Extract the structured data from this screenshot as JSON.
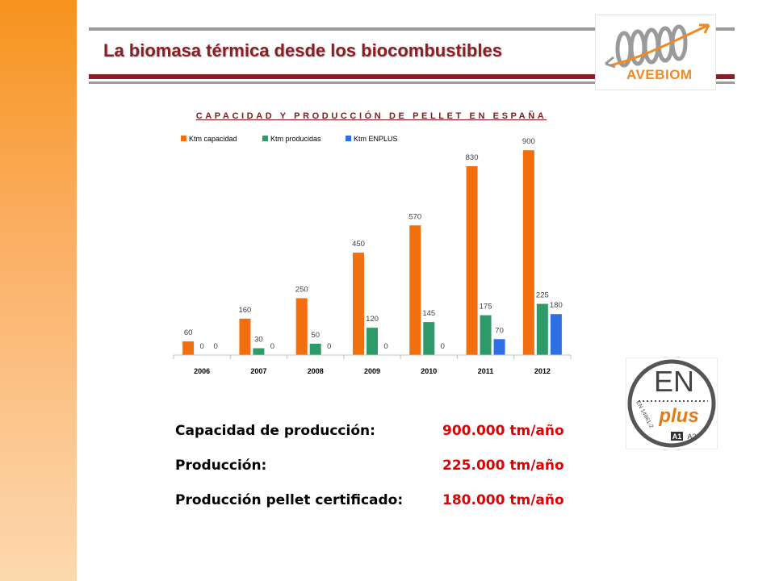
{
  "header": {
    "title": "La biomasa térmica desde los biocombustibles"
  },
  "logo": {
    "text": "AVEBIOM",
    "icon": "avebiom-logo-icon"
  },
  "chart_data": {
    "type": "bar",
    "title": "CAPACIDAD Y PRODUCCIÓN DE PELLET EN ESPAÑA",
    "categories": [
      "2006",
      "2007",
      "2008",
      "2009",
      "2010",
      "2011",
      "2012"
    ],
    "series": [
      {
        "name": "Ktm capacidad",
        "color": "#f26f10",
        "values": [
          60,
          160,
          250,
          450,
          570,
          830,
          900
        ]
      },
      {
        "name": "Ktm producidas",
        "color": "#2e9a6a",
        "values": [
          0,
          30,
          50,
          120,
          145,
          175,
          225
        ]
      },
      {
        "name": "Ktm ENPLUS",
        "color": "#2f6fe4",
        "values": [
          0,
          0,
          0,
          0,
          0,
          70,
          180
        ]
      }
    ],
    "ylim": [
      0,
      1000
    ],
    "xlabel": "",
    "ylabel": "",
    "grid": false,
    "legend": "top-left",
    "data_labels": true
  },
  "summary": [
    {
      "label": "Capacidad de producción:",
      "value": "900.000 tm/año"
    },
    {
      "label": "Producción:",
      "value": "225.000 tm/año"
    },
    {
      "label": "Producción pellet certificado:",
      "value": "180.000 tm/año"
    }
  ],
  "badge": {
    "main": "EN",
    "sub": "plus",
    "norm": "EN 14961-2",
    "class_a1": "A1",
    "class_a2": "A2",
    "icon": "enplus-certification-icon"
  }
}
